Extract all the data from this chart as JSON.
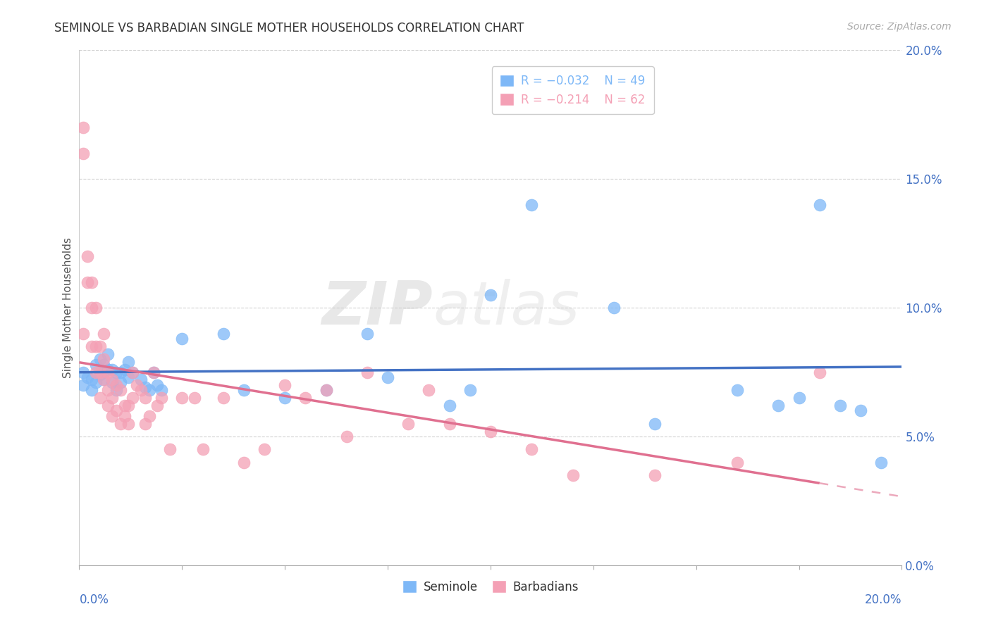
{
  "title": "SEMINOLE VS BARBADIAN SINGLE MOTHER HOUSEHOLDS CORRELATION CHART",
  "source": "Source: ZipAtlas.com",
  "ylabel": "Single Mother Households",
  "legend_seminole": "Seminole",
  "legend_barbadians": "Barbadians",
  "seminole_color": "#7EB8F7",
  "barbadians_color": "#F4A0B5",
  "seminole_line_color": "#4472C4",
  "barbadians_line_color": "#E07090",
  "watermark_zip": "ZIP",
  "watermark_atlas": "atlas",
  "xlim": [
    0.0,
    0.2
  ],
  "ylim": [
    0.0,
    0.2
  ],
  "ytick_values": [
    0.0,
    0.05,
    0.1,
    0.15,
    0.2
  ],
  "xtick_values": [
    0.0,
    0.025,
    0.05,
    0.075,
    0.1,
    0.125,
    0.15,
    0.175,
    0.2
  ],
  "background_color": "#FFFFFF",
  "grid_color": "#CCCCCC",
  "seminole_x": [
    0.001,
    0.001,
    0.002,
    0.003,
    0.003,
    0.004,
    0.004,
    0.005,
    0.005,
    0.006,
    0.006,
    0.007,
    0.007,
    0.008,
    0.008,
    0.009,
    0.009,
    0.01,
    0.01,
    0.011,
    0.012,
    0.012,
    0.013,
    0.015,
    0.016,
    0.017,
    0.018,
    0.019,
    0.02,
    0.025,
    0.035,
    0.04,
    0.05,
    0.06,
    0.07,
    0.075,
    0.09,
    0.095,
    0.1,
    0.11,
    0.13,
    0.14,
    0.16,
    0.17,
    0.175,
    0.18,
    0.185,
    0.19,
    0.195
  ],
  "seminole_y": [
    0.075,
    0.07,
    0.073,
    0.068,
    0.072,
    0.078,
    0.071,
    0.08,
    0.074,
    0.078,
    0.072,
    0.082,
    0.076,
    0.076,
    0.071,
    0.075,
    0.068,
    0.075,
    0.071,
    0.076,
    0.079,
    0.073,
    0.075,
    0.072,
    0.069,
    0.068,
    0.075,
    0.07,
    0.068,
    0.088,
    0.09,
    0.068,
    0.065,
    0.068,
    0.09,
    0.073,
    0.062,
    0.068,
    0.105,
    0.14,
    0.1,
    0.055,
    0.068,
    0.062,
    0.065,
    0.14,
    0.062,
    0.06,
    0.04
  ],
  "barbadians_x": [
    0.001,
    0.001,
    0.002,
    0.002,
    0.003,
    0.003,
    0.003,
    0.004,
    0.004,
    0.004,
    0.005,
    0.005,
    0.005,
    0.006,
    0.006,
    0.006,
    0.007,
    0.007,
    0.007,
    0.008,
    0.008,
    0.008,
    0.009,
    0.009,
    0.01,
    0.01,
    0.011,
    0.011,
    0.012,
    0.012,
    0.013,
    0.013,
    0.014,
    0.015,
    0.016,
    0.016,
    0.017,
    0.018,
    0.019,
    0.02,
    0.022,
    0.025,
    0.028,
    0.03,
    0.035,
    0.04,
    0.045,
    0.05,
    0.055,
    0.06,
    0.065,
    0.07,
    0.08,
    0.085,
    0.09,
    0.1,
    0.11,
    0.12,
    0.14,
    0.16,
    0.18,
    0.001
  ],
  "barbadians_y": [
    0.09,
    0.17,
    0.12,
    0.11,
    0.11,
    0.1,
    0.085,
    0.1,
    0.085,
    0.075,
    0.085,
    0.075,
    0.065,
    0.09,
    0.08,
    0.072,
    0.075,
    0.068,
    0.062,
    0.072,
    0.065,
    0.058,
    0.07,
    0.06,
    0.068,
    0.055,
    0.062,
    0.058,
    0.062,
    0.055,
    0.075,
    0.065,
    0.07,
    0.068,
    0.065,
    0.055,
    0.058,
    0.075,
    0.062,
    0.065,
    0.045,
    0.065,
    0.065,
    0.045,
    0.065,
    0.04,
    0.045,
    0.07,
    0.065,
    0.068,
    0.05,
    0.075,
    0.055,
    0.068,
    0.055,
    0.052,
    0.045,
    0.035,
    0.035,
    0.04,
    0.075,
    0.16
  ]
}
